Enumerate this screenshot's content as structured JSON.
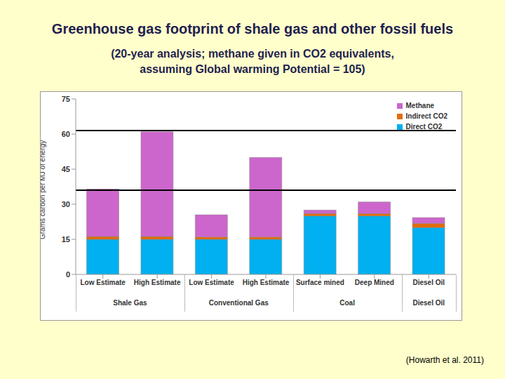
{
  "chart_data": {
    "type": "bar",
    "title": "Greenhouse gas footprint of shale gas and other fossil fuels",
    "subtitle": "(20-year analysis; methane given in CO2 equivalents, assuming Global warming Potential = 105)",
    "source": "(Howarth et al. 2011)",
    "y_label": "Grams carbon per MJ of energy",
    "categories": [
      "Low Estimate",
      "High Estimate",
      "Low Estimate",
      "High Estimate",
      "Surface mined",
      "Deep Mined",
      "Diesel Oil"
    ],
    "groups": [
      "Shale Gas",
      "Shale Gas",
      "Conventional Gas",
      "Conventional Gas",
      "Coal",
      "Coal",
      "Diesel Oil"
    ],
    "series": [
      {
        "name": "Direct CO2",
        "color": "#00b0f0",
        "values": [
          15,
          15,
          15,
          15,
          25,
          25,
          20
        ]
      },
      {
        "name": "Indirect CO2",
        "color": "#e36c09",
        "values": [
          1.2,
          1.2,
          1,
          1,
          1,
          1,
          1.8
        ]
      },
      {
        "name": "Methane",
        "color": "#cc66cc",
        "values": [
          20.3,
          44.8,
          9.5,
          34,
          1.5,
          5,
          2.5
        ]
      }
    ],
    "stacked": true,
    "legend": "upper right",
    "ylim": [
      0,
      75
    ],
    "yticks": [
      0,
      15,
      30,
      45,
      60,
      75
    ],
    "reference_lines": [
      61.5,
      36
    ]
  }
}
